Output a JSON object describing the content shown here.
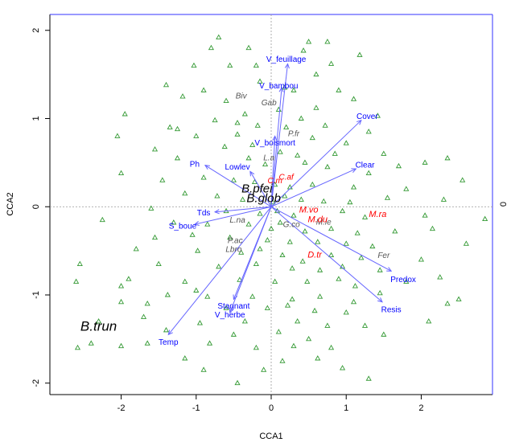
{
  "chart_data": {
    "type": "scatter",
    "title": "",
    "xlabel": "CCA1",
    "ylabel": "CCA2",
    "right_axis_tick": "0",
    "xlim": [
      -2.95,
      2.95
    ],
    "ylim": [
      -2.13,
      2.18
    ],
    "x_ticks": [
      -2,
      -1,
      0,
      1,
      2
    ],
    "y_ticks": [
      -2,
      -1,
      0,
      1,
      2
    ],
    "grid": false,
    "zero_lines": true,
    "colors": {
      "frame_axes": "#000000",
      "frame_top_right": "#3333ff",
      "arrows": "#6666ff",
      "arrow_labels": "#0000ff",
      "sites": "#339933",
      "species_black": "#000000",
      "species_grey": "#555555",
      "species_red": "#ff0000"
    },
    "env_vectors": [
      {
        "name": "V_feuillage",
        "x": 0.22,
        "y": 1.62,
        "lx": 0.2,
        "ly": 1.68
      },
      {
        "name": "V_bambou",
        "x": 0.14,
        "y": 1.35,
        "lx": 0.1,
        "ly": 1.38
      },
      {
        "name": "Cover",
        "x": 1.2,
        "y": 0.98,
        "lx": 1.28,
        "ly": 1.03
      },
      {
        "name": "V_boismort",
        "x": 0.05,
        "y": 0.8,
        "lx": 0.05,
        "ly": 0.73
      },
      {
        "name": "Clear",
        "x": 1.13,
        "y": 0.43,
        "lx": 1.25,
        "ly": 0.48
      },
      {
        "name": "Ph",
        "x": -0.88,
        "y": 0.47,
        "lx": -1.02,
        "ly": 0.49
      },
      {
        "name": "Lowlev",
        "x": -0.28,
        "y": 0.4,
        "lx": -0.45,
        "ly": 0.46
      },
      {
        "name": "Tds",
        "x": -0.75,
        "y": -0.06,
        "lx": -0.9,
        "ly": -0.06
      },
      {
        "name": "S_boue",
        "x": -1.02,
        "y": -0.2,
        "lx": -1.18,
        "ly": -0.21
      },
      {
        "name": "Stagnant",
        "x": -0.5,
        "y": -1.05,
        "lx": -0.5,
        "ly": -1.12
      },
      {
        "name": "V_herbe",
        "x": -0.55,
        "y": -1.2,
        "lx": -0.55,
        "ly": -1.22
      },
      {
        "name": "Temp",
        "x": -1.37,
        "y": -1.45,
        "lx": -1.37,
        "ly": -1.53
      },
      {
        "name": "Predox",
        "x": 1.6,
        "y": -0.73,
        "lx": 1.76,
        "ly": -0.82
      },
      {
        "name": "Resis",
        "x": 1.48,
        "y": -1.08,
        "lx": 1.6,
        "ly": -1.16
      }
    ],
    "species": [
      {
        "name": "B.trun",
        "x": -2.3,
        "y": -1.35,
        "color": "black",
        "size": 17
      },
      {
        "name": "B.pfei",
        "x": -0.19,
        "y": 0.21,
        "color": "black",
        "size": 15
      },
      {
        "name": "B.glob",
        "x": -0.1,
        "y": 0.1,
        "color": "black",
        "size": 15
      },
      {
        "name": "Biv",
        "x": -0.4,
        "y": 1.26,
        "color": "grey",
        "size": 10
      },
      {
        "name": "Gab",
        "x": -0.03,
        "y": 1.18,
        "color": "grey",
        "size": 10
      },
      {
        "name": "P.fr",
        "x": 0.3,
        "y": 0.83,
        "color": "grey",
        "size": 10
      },
      {
        "name": "L.a",
        "x": -0.03,
        "y": 0.56,
        "color": "grey",
        "size": 10
      },
      {
        "name": "L.na",
        "x": -0.45,
        "y": -0.15,
        "color": "grey",
        "size": 10
      },
      {
        "name": "P.ac",
        "x": -0.48,
        "y": -0.38,
        "color": "grey",
        "size": 10
      },
      {
        "name": "Lbro",
        "x": -0.5,
        "y": -0.48,
        "color": "grey",
        "size": 10
      },
      {
        "name": "G.co",
        "x": 0.27,
        "y": -0.2,
        "color": "grey",
        "size": 10
      },
      {
        "name": "M.le",
        "x": 0.7,
        "y": -0.17,
        "color": "grey",
        "size": 10
      },
      {
        "name": "Fer",
        "x": 1.5,
        "y": -0.55,
        "color": "grey",
        "size": 10
      },
      {
        "name": "C.af",
        "x": 0.2,
        "y": 0.34,
        "color": "red",
        "size": 10
      },
      {
        "name": "C.m",
        "x": 0.05,
        "y": 0.3,
        "color": "red",
        "size": 10
      },
      {
        "name": "M.vo",
        "x": 0.5,
        "y": -0.03,
        "color": "red",
        "size": 11
      },
      {
        "name": "M.du",
        "x": 0.62,
        "y": -0.14,
        "color": "red",
        "size": 11
      },
      {
        "name": "M.ra",
        "x": 1.42,
        "y": -0.08,
        "color": "red",
        "size": 11
      },
      {
        "name": "D.tr",
        "x": 0.58,
        "y": -0.54,
        "color": "red",
        "size": 11
      }
    ],
    "sites": [
      [
        -0.7,
        1.92
      ],
      [
        -0.8,
        1.8
      ],
      [
        -0.3,
        1.8
      ],
      [
        0.5,
        1.87
      ],
      [
        0.75,
        1.87
      ],
      [
        0.43,
        1.77
      ],
      [
        -1.03,
        1.6
      ],
      [
        -0.55,
        1.6
      ],
      [
        0.8,
        1.62
      ],
      [
        1.18,
        1.72
      ],
      [
        -0.2,
        1.6
      ],
      [
        0.6,
        1.5
      ],
      [
        -1.4,
        1.38
      ],
      [
        -0.9,
        1.32
      ],
      [
        -0.15,
        1.42
      ],
      [
        0.3,
        1.32
      ],
      [
        0.9,
        1.32
      ],
      [
        -1.18,
        1.25
      ],
      [
        -0.6,
        1.2
      ],
      [
        0.1,
        1.1
      ],
      [
        0.6,
        1.12
      ],
      [
        -1.95,
        1.05
      ],
      [
        -0.35,
        1.05
      ],
      [
        0.4,
        1.0
      ],
      [
        1.1,
        1.22
      ],
      [
        1.42,
        1.03
      ],
      [
        -1.35,
        0.9
      ],
      [
        -0.75,
        0.98
      ],
      [
        -0.18,
        0.92
      ],
      [
        0.2,
        0.9
      ],
      [
        0.72,
        0.92
      ],
      [
        1.3,
        0.85
      ],
      [
        -2.05,
        0.8
      ],
      [
        -1.0,
        0.8
      ],
      [
        -0.45,
        0.82
      ],
      [
        0.55,
        0.78
      ],
      [
        1.0,
        0.72
      ],
      [
        -1.55,
        0.65
      ],
      [
        -0.62,
        0.68
      ],
      [
        0.12,
        0.62
      ],
      [
        0.35,
        0.58
      ],
      [
        0.85,
        0.6
      ],
      [
        1.5,
        0.6
      ],
      [
        2.35,
        0.55
      ],
      [
        -1.25,
        0.55
      ],
      [
        -0.3,
        0.55
      ],
      [
        -0.08,
        0.48
      ],
      [
        0.45,
        0.5
      ],
      [
        0.75,
        0.45
      ],
      [
        1.3,
        0.38
      ],
      [
        1.7,
        0.46
      ],
      [
        2.05,
        0.5
      ],
      [
        -2.0,
        0.38
      ],
      [
        -1.45,
        0.3
      ],
      [
        -0.9,
        0.33
      ],
      [
        -0.5,
        0.3
      ],
      [
        -0.22,
        0.28
      ],
      [
        0.05,
        0.25
      ],
      [
        0.25,
        0.22
      ],
      [
        0.55,
        0.25
      ],
      [
        1.1,
        0.22
      ],
      [
        1.8,
        0.2
      ],
      [
        2.55,
        0.3
      ],
      [
        -1.15,
        0.15
      ],
      [
        -0.72,
        0.12
      ],
      [
        -0.38,
        0.08
      ],
      [
        0.02,
        0.05
      ],
      [
        0.18,
        0.12
      ],
      [
        0.4,
        0.08
      ],
      [
        0.7,
        0.06
      ],
      [
        1.05,
        0.05
      ],
      [
        1.55,
        0.1
      ],
      [
        2.3,
        0.08
      ],
      [
        -1.6,
        -0.02
      ],
      [
        -0.6,
        -0.05
      ],
      [
        -0.15,
        -0.08
      ],
      [
        0.08,
        -0.05
      ],
      [
        0.3,
        -0.1
      ],
      [
        0.95,
        -0.05
      ],
      [
        1.25,
        -0.12
      ],
      [
        2.05,
        -0.1
      ],
      [
        2.85,
        -0.14
      ],
      [
        -2.25,
        -0.15
      ],
      [
        -1.3,
        -0.18
      ],
      [
        -0.85,
        -0.2
      ],
      [
        -0.3,
        -0.2
      ],
      [
        0.0,
        -0.25
      ],
      [
        0.45,
        -0.28
      ],
      [
        0.8,
        -0.25
      ],
      [
        1.15,
        -0.3
      ],
      [
        1.65,
        -0.28
      ],
      [
        2.15,
        -0.25
      ],
      [
        -1.55,
        -0.35
      ],
      [
        -1.05,
        -0.32
      ],
      [
        -0.55,
        -0.35
      ],
      [
        -0.05,
        -0.38
      ],
      [
        0.25,
        -0.4
      ],
      [
        0.62,
        -0.4
      ],
      [
        1.0,
        -0.42
      ],
      [
        1.35,
        -0.45
      ],
      [
        2.6,
        -0.42
      ],
      [
        -1.8,
        -0.48
      ],
      [
        -0.98,
        -0.5
      ],
      [
        -0.4,
        -0.52
      ],
      [
        0.15,
        -0.55
      ],
      [
        0.42,
        -0.62
      ],
      [
        0.8,
        -0.55
      ],
      [
        1.2,
        -0.58
      ],
      [
        2.0,
        -0.6
      ],
      [
        -1.5,
        -0.65
      ],
      [
        -0.7,
        -0.68
      ],
      [
        -0.2,
        -0.65
      ],
      [
        0.28,
        -0.7
      ],
      [
        0.65,
        -0.72
      ],
      [
        0.95,
        -0.68
      ],
      [
        1.45,
        -0.72
      ],
      [
        2.25,
        -0.8
      ],
      [
        -1.9,
        -0.82
      ],
      [
        -1.15,
        -0.85
      ],
      [
        -0.42,
        -0.83
      ],
      [
        0.05,
        -0.85
      ],
      [
        0.48,
        -0.85
      ],
      [
        0.9,
        -0.82
      ],
      [
        1.12,
        -0.9
      ],
      [
        1.8,
        -0.85
      ],
      [
        -2.55,
        -0.65
      ],
      [
        -2.6,
        -0.85
      ],
      [
        -2.0,
        -0.9
      ],
      [
        -1.38,
        -1.0
      ],
      [
        -0.85,
        -1.02
      ],
      [
        -0.25,
        -1.02
      ],
      [
        0.28,
        -1.05
      ],
      [
        0.65,
        -1.02
      ],
      [
        1.1,
        -1.08
      ],
      [
        1.45,
        -0.98
      ],
      [
        2.5,
        -1.05
      ],
      [
        -1.65,
        -1.1
      ],
      [
        -0.6,
        -1.15
      ],
      [
        -0.05,
        -1.15
      ],
      [
        0.22,
        -1.12
      ],
      [
        0.58,
        -1.18
      ],
      [
        1.0,
        -1.2
      ],
      [
        2.35,
        -1.1
      ],
      [
        -1.7,
        -1.25
      ],
      [
        -0.95,
        -1.32
      ],
      [
        -0.35,
        -1.3
      ],
      [
        0.35,
        -1.3
      ],
      [
        0.75,
        -1.35
      ],
      [
        1.25,
        -1.35
      ],
      [
        2.1,
        -1.3
      ],
      [
        -2.3,
        -1.3
      ],
      [
        -1.4,
        -1.4
      ],
      [
        -0.5,
        -1.45
      ],
      [
        0.1,
        -1.42
      ],
      [
        0.5,
        -1.5
      ],
      [
        1.5,
        -1.45
      ],
      [
        -2.4,
        -1.55
      ],
      [
        -2.0,
        -1.58
      ],
      [
        -1.65,
        -1.55
      ],
      [
        -0.82,
        -1.55
      ],
      [
        -0.2,
        -1.6
      ],
      [
        0.3,
        -1.58
      ],
      [
        0.8,
        -1.6
      ],
      [
        -2.58,
        -1.6
      ],
      [
        -1.15,
        -1.72
      ],
      [
        0.15,
        -1.75
      ],
      [
        0.62,
        -1.72
      ],
      [
        -0.9,
        -1.85
      ],
      [
        -0.1,
        -1.85
      ],
      [
        0.95,
        -1.83
      ],
      [
        1.3,
        -1.95
      ],
      [
        -0.45,
        -2.0
      ],
      [
        -2.0,
        -1.08
      ],
      [
        -1.0,
        -0.95
      ],
      [
        -0.15,
        -0.48
      ],
      [
        0.12,
        -0.18
      ],
      [
        -0.45,
        0.95
      ],
      [
        -1.25,
        0.88
      ],
      [
        0.18,
        1.35
      ],
      [
        -0.25,
        0.7
      ]
    ]
  }
}
